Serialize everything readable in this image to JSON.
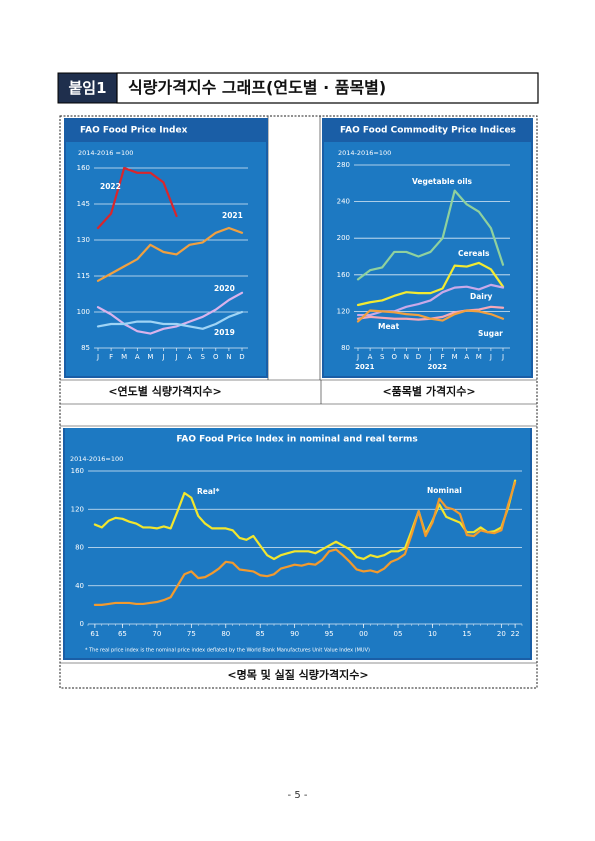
{
  "header": {
    "label": "붙임1",
    "title": "식량가격지수 그래프(연도별 · 품목별)"
  },
  "chart_data": [
    {
      "type": "line",
      "title": "FAO Food Price Index",
      "subtitle": "2014-2016 =100",
      "categories": [
        "J",
        "F",
        "M",
        "A",
        "M",
        "J",
        "J",
        "A",
        "S",
        "O",
        "N",
        "D"
      ],
      "ylim": [
        85,
        160
      ],
      "yticks": [
        85,
        100,
        115,
        130,
        145,
        160
      ],
      "grid": true,
      "series": [
        {
          "name": "2022",
          "color": "#d9262c",
          "values": [
            135,
            141,
            160,
            158,
            158,
            154,
            140,
            null,
            null,
            null,
            null,
            null
          ]
        },
        {
          "name": "2021",
          "color": "#f0a040",
          "values": [
            113,
            116,
            119,
            122,
            128,
            125,
            124,
            128,
            129,
            133,
            135,
            133
          ]
        },
        {
          "name": "2020",
          "color": "#d9b3ec",
          "values": [
            102,
            99,
            95,
            92,
            91,
            93,
            94,
            96,
            98,
            101,
            105,
            108
          ]
        },
        {
          "name": "2019",
          "color": "#9fd4f5",
          "values": [
            94,
            95,
            95,
            96,
            96,
            95,
            95,
            94,
            93,
            95,
            98,
            100
          ]
        }
      ]
    },
    {
      "type": "line",
      "title": "FAO Food Commodity Price Indices",
      "subtitle": "2014-2016=100",
      "categories": [
        "J",
        "A",
        "S",
        "O",
        "N",
        "D",
        "J",
        "F",
        "M",
        "A",
        "M",
        "J",
        "J"
      ],
      "year_labels": [
        "2021",
        "2022"
      ],
      "ylim": [
        80,
        280
      ],
      "yticks": [
        80,
        120,
        160,
        200,
        240,
        280
      ],
      "grid": true,
      "series": [
        {
          "name": "Vegetable oils",
          "color": "#8fd19e",
          "values": [
            155,
            165,
            168,
            185,
            185,
            180,
            185,
            200,
            252,
            237,
            229,
            211,
            171
          ]
        },
        {
          "name": "Cereals",
          "color": "#f2ea32",
          "values": [
            127,
            130,
            132,
            137,
            141,
            140,
            140,
            145,
            170,
            169,
            173,
            166,
            147
          ]
        },
        {
          "name": "Dairy",
          "color": "#c9a9e9",
          "values": [
            116,
            116,
            120,
            120,
            125,
            128,
            132,
            141,
            146,
            147,
            144,
            149,
            146
          ]
        },
        {
          "name": "Meat",
          "color": "#f5a8b8",
          "values": [
            112,
            114,
            113,
            112,
            112,
            111,
            112,
            114,
            119,
            121,
            122,
            125,
            124
          ]
        },
        {
          "name": "Sugar",
          "color": "#f0a040",
          "values": [
            109,
            121,
            120,
            119,
            117,
            116,
            112,
            110,
            117,
            121,
            120,
            117,
            112
          ]
        }
      ]
    },
    {
      "type": "line",
      "title": "FAO Food Price Index in nominal and real terms",
      "subtitle": "2014-2016=100",
      "note": "* The real price index is the nominal price index deflated by the World Bank Manufactures Unit Value Index (MUV)",
      "x": [
        1961,
        1962,
        1963,
        1964,
        1965,
        1966,
        1967,
        1968,
        1969,
        1970,
        1971,
        1972,
        1973,
        1974,
        1975,
        1976,
        1977,
        1978,
        1979,
        1980,
        1981,
        1982,
        1983,
        1984,
        1985,
        1986,
        1987,
        1988,
        1989,
        1990,
        1991,
        1992,
        1993,
        1994,
        1995,
        1996,
        1997,
        1998,
        1999,
        2000,
        2001,
        2002,
        2003,
        2004,
        2005,
        2006,
        2007,
        2008,
        2009,
        2010,
        2011,
        2012,
        2013,
        2014,
        2015,
        2016,
        2017,
        2018,
        2019,
        2020,
        2021,
        2022
      ],
      "xlim": [
        1960,
        2023
      ],
      "xticks": [
        {
          "value": 1961,
          "label": "61"
        },
        {
          "value": 1965,
          "label": "65"
        },
        {
          "value": 1970,
          "label": "70"
        },
        {
          "value": 1975,
          "label": "75"
        },
        {
          "value": 1980,
          "label": "80"
        },
        {
          "value": 1985,
          "label": "85"
        },
        {
          "value": 1990,
          "label": "90"
        },
        {
          "value": 1995,
          "label": "95"
        },
        {
          "value": 2000,
          "label": "00"
        },
        {
          "value": 2005,
          "label": "05"
        },
        {
          "value": 2010,
          "label": "10"
        },
        {
          "value": 2015,
          "label": "15"
        },
        {
          "value": 2020,
          "label": "20"
        },
        {
          "value": 2022,
          "label": "22"
        }
      ],
      "ylim": [
        0,
        160
      ],
      "yticks": [
        0,
        40,
        80,
        120,
        160
      ],
      "grid": true,
      "series": [
        {
          "name": "Real*",
          "color": "#f2e62e",
          "values": [
            104,
            101,
            108,
            111,
            110,
            107,
            105,
            101,
            101,
            100,
            102,
            100,
            118,
            137,
            132,
            113,
            105,
            100,
            100,
            100,
            98,
            90,
            88,
            92,
            82,
            72,
            68,
            72,
            74,
            76,
            76,
            76,
            74,
            78,
            82,
            86,
            82,
            78,
            70,
            68,
            72,
            70,
            72,
            76,
            76,
            79,
            98,
            118,
            94,
            108,
            125,
            112,
            109,
            106,
            96,
            96,
            101,
            96,
            97,
            101,
            122,
            150
          ]
        },
        {
          "name": "Nominal",
          "color": "#f29a2e",
          "values": [
            20,
            20,
            21,
            22,
            22,
            22,
            21,
            21,
            22,
            23,
            25,
            28,
            40,
            52,
            55,
            48,
            49,
            53,
            58,
            65,
            64,
            57,
            56,
            55,
            51,
            50,
            52,
            58,
            60,
            62,
            61,
            63,
            62,
            67,
            76,
            78,
            72,
            65,
            57,
            55,
            56,
            54,
            58,
            65,
            68,
            73,
            94,
            118,
            92,
            106,
            131,
            122,
            120,
            115,
            93,
            92,
            98,
            96,
            95,
            98,
            125,
            148
          ]
        }
      ]
    }
  ],
  "captions": [
    "<연도별 식량가격지수>",
    "<품목별 가격지수>",
    "<명목 및 실질 식량가격지수>"
  ],
  "footer": {
    "page": "- 5 -"
  }
}
